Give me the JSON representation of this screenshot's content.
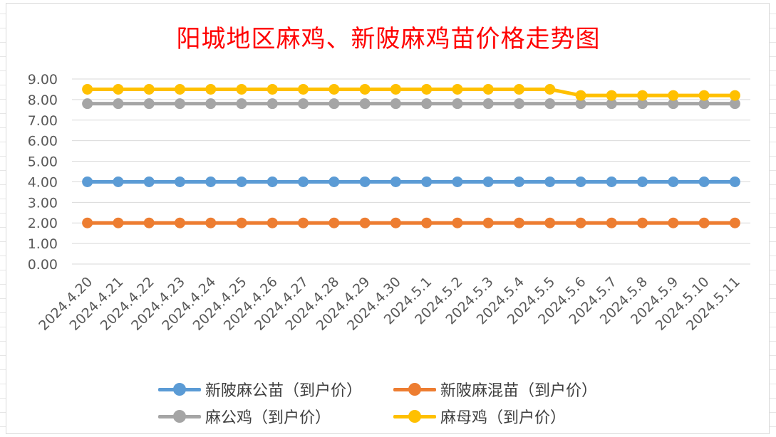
{
  "chart_data": {
    "type": "line",
    "title": "阳城地区麻鸡、新陂麻鸡苗价格走势图",
    "categories": [
      "2024.4.20",
      "2024.4.21",
      "2024.4.22",
      "2024.4.23",
      "2024.4.24",
      "2024.4.25",
      "2024.4.26",
      "2024.4.27",
      "2024.4.28",
      "2024.4.29",
      "2024.4.30",
      "2024.5.1",
      "2024.5.2",
      "2024.5.3",
      "2024.5.4",
      "2024.5.5",
      "2024.5.6",
      "2024.5.7",
      "2024.5.8",
      "2024.5.9",
      "2024.5.10",
      "2024.5.11"
    ],
    "y_ticks": [
      "0.00",
      "1.00",
      "2.00",
      "3.00",
      "4.00",
      "5.00",
      "6.00",
      "7.00",
      "8.00",
      "9.00"
    ],
    "ylim": [
      0,
      9
    ],
    "grid": true,
    "legend_position": "bottom",
    "series": [
      {
        "name": "新陂麻公苗（到户价）",
        "color": "#5b9bd5",
        "values": [
          4,
          4,
          4,
          4,
          4,
          4,
          4,
          4,
          4,
          4,
          4,
          4,
          4,
          4,
          4,
          4,
          4,
          4,
          4,
          4,
          4,
          4
        ]
      },
      {
        "name": "新陂麻混苗（到户价）",
        "color": "#ed7d31",
        "values": [
          2,
          2,
          2,
          2,
          2,
          2,
          2,
          2,
          2,
          2,
          2,
          2,
          2,
          2,
          2,
          2,
          2,
          2,
          2,
          2,
          2,
          2
        ]
      },
      {
        "name": "麻公鸡（到户价）",
        "color": "#a5a5a5",
        "values": [
          7.8,
          7.8,
          7.8,
          7.8,
          7.8,
          7.8,
          7.8,
          7.8,
          7.8,
          7.8,
          7.8,
          7.8,
          7.8,
          7.8,
          7.8,
          7.8,
          7.8,
          7.8,
          7.8,
          7.8,
          7.8,
          7.8
        ]
      },
      {
        "name": "麻母鸡（到户价）",
        "color": "#ffc000",
        "values": [
          8.5,
          8.5,
          8.5,
          8.5,
          8.5,
          8.5,
          8.5,
          8.5,
          8.5,
          8.5,
          8.5,
          8.5,
          8.5,
          8.5,
          8.5,
          8.5,
          8.2,
          8.2,
          8.2,
          8.2,
          8.2,
          8.2
        ]
      }
    ]
  }
}
